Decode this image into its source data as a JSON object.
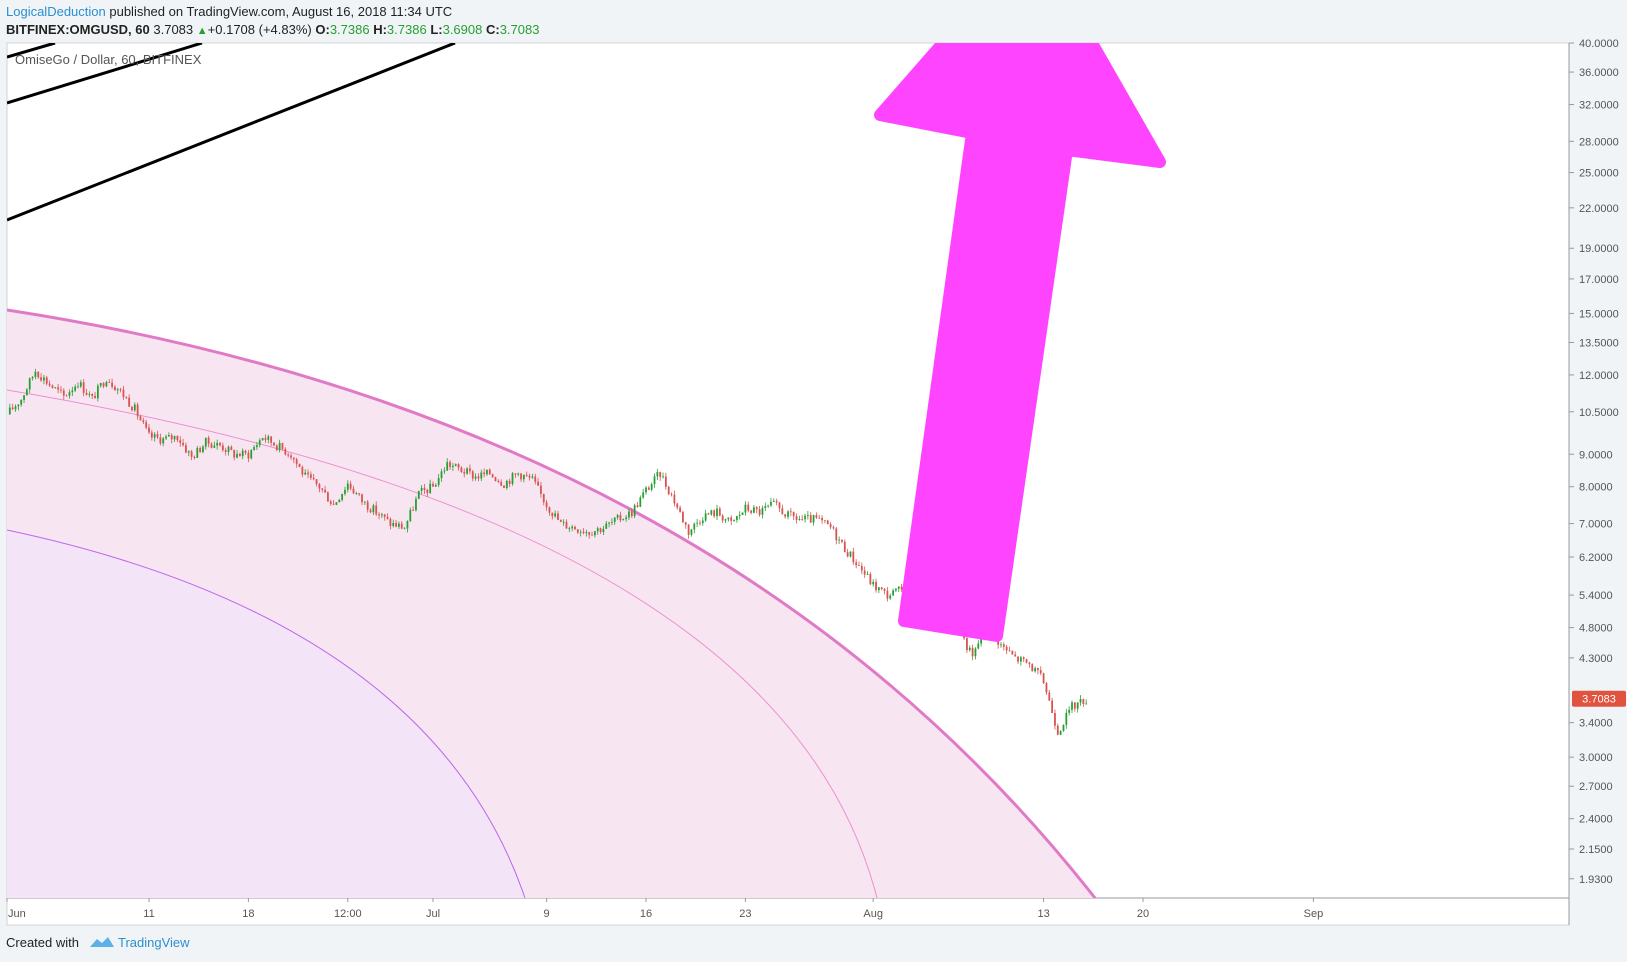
{
  "header": {
    "publisher": "LogicalDeduction",
    "published_text": "published on TradingView.com, August 16, 2018 11:34 UTC",
    "symbol": "BITFINEX:OMGUSD, 60",
    "last": "3.7083",
    "change": "+0.1708 (+4.83%)",
    "open_label": "O:",
    "open": "3.7386",
    "high_label": "H:",
    "high": "3.7386",
    "low_label": "L:",
    "low": "3.6908",
    "close_label": "C:",
    "close": "3.7083"
  },
  "footer": {
    "created_with": "Created with",
    "brand": "TradingView"
  },
  "colors": {
    "up": "#26a033",
    "candle_down": "#d9534f",
    "arrow": "#ff44ff",
    "outer_arc": "#e17ac6",
    "fill_outer": "#f8e5f2",
    "fill_inner": "#f3e5f7",
    "inner_arc": "#bb66ee",
    "price_badge": "#e0533f"
  },
  "chart_data": {
    "type": "candlestick",
    "title": "OmiseGo / Dollar, 60, BITFINEX",
    "symbol": "OMGUSD",
    "exchange": "BITFINEX",
    "interval": "60",
    "y_scale": "log",
    "ylim": [
      1.8,
      40
    ],
    "current_price": "3.7083",
    "y_ticks": [
      "40.0000",
      "36.0000",
      "32.0000",
      "28.0000",
      "25.0000",
      "22.0000",
      "19.0000",
      "17.0000",
      "15.0000",
      "13.5000",
      "12.0000",
      "10.5000",
      "9.0000",
      "8.0000",
      "7.0000",
      "6.2000",
      "5.4000",
      "4.8000",
      "4.3000",
      "3.4000",
      "3.0000",
      "2.7000",
      "2.4000",
      "2.1500",
      "1.9300"
    ],
    "x_ticks": [
      "Jun",
      "11",
      "18",
      "12:00",
      "Jul",
      "9",
      "16",
      "23",
      "Aug",
      "13",
      "20",
      "Sep"
    ],
    "x_tick_dates": [
      "2018-06-01",
      "2018-06-11",
      "2018-06-18",
      "2018-06-25",
      "2018-07-01",
      "2018-07-09",
      "2018-07-16",
      "2018-07-23",
      "2018-08-01",
      "2018-08-13",
      "2018-08-20",
      "2018-09-01"
    ],
    "xlim": [
      "2018-06-01",
      "2018-09-19"
    ],
    "price_path": [
      [
        "2018-06-01",
        10.4
      ],
      [
        "2018-06-02",
        11.0
      ],
      [
        "2018-06-03",
        12.2
      ],
      [
        "2018-06-04",
        11.6
      ],
      [
        "2018-06-05",
        11.1
      ],
      [
        "2018-06-06",
        11.7
      ],
      [
        "2018-06-07",
        11.0
      ],
      [
        "2018-06-08",
        11.9
      ],
      [
        "2018-06-09",
        11.3
      ],
      [
        "2018-06-10",
        10.6
      ],
      [
        "2018-06-11",
        9.6
      ],
      [
        "2018-06-12",
        9.5
      ],
      [
        "2018-06-13",
        9.6
      ],
      [
        "2018-06-14",
        8.9
      ],
      [
        "2018-06-15",
        9.4
      ],
      [
        "2018-06-16",
        9.3
      ],
      [
        "2018-06-17",
        9.0
      ],
      [
        "2018-06-18",
        9.0
      ],
      [
        "2018-06-19",
        9.6
      ],
      [
        "2018-06-20",
        9.3
      ],
      [
        "2018-06-21",
        9.0
      ],
      [
        "2018-06-22",
        8.3
      ],
      [
        "2018-06-23",
        8.0
      ],
      [
        "2018-06-24",
        7.5
      ],
      [
        "2018-06-25",
        8.1
      ],
      [
        "2018-06-26",
        7.6
      ],
      [
        "2018-06-27",
        7.3
      ],
      [
        "2018-06-28",
        7.0
      ],
      [
        "2018-06-29",
        6.9
      ],
      [
        "2018-06-30",
        7.8
      ],
      [
        "2018-07-01",
        8.0
      ],
      [
        "2018-07-02",
        8.7
      ],
      [
        "2018-07-03",
        8.5
      ],
      [
        "2018-07-04",
        8.3
      ],
      [
        "2018-07-05",
        8.4
      ],
      [
        "2018-07-06",
        8.1
      ],
      [
        "2018-07-07",
        8.4
      ],
      [
        "2018-07-08",
        8.2
      ],
      [
        "2018-07-09",
        7.5
      ],
      [
        "2018-07-10",
        7.0
      ],
      [
        "2018-07-11",
        6.9
      ],
      [
        "2018-07-12",
        6.8
      ],
      [
        "2018-07-13",
        6.9
      ],
      [
        "2018-07-14",
        7.1
      ],
      [
        "2018-07-15",
        7.3
      ],
      [
        "2018-07-16",
        7.9
      ],
      [
        "2018-07-17",
        8.4
      ],
      [
        "2018-07-18",
        7.6
      ],
      [
        "2018-07-19",
        6.8
      ],
      [
        "2018-07-20",
        7.2
      ],
      [
        "2018-07-21",
        7.3
      ],
      [
        "2018-07-22",
        7.0
      ],
      [
        "2018-07-23",
        7.4
      ],
      [
        "2018-07-24",
        7.3
      ],
      [
        "2018-07-25",
        7.5
      ],
      [
        "2018-07-26",
        7.2
      ],
      [
        "2018-07-27",
        7.1
      ],
      [
        "2018-07-28",
        7.1
      ],
      [
        "2018-07-29",
        6.9
      ],
      [
        "2018-07-30",
        6.4
      ],
      [
        "2018-07-31",
        6.0
      ],
      [
        "2018-08-01",
        5.6
      ],
      [
        "2018-08-02",
        5.4
      ],
      [
        "2018-08-03",
        5.5
      ],
      [
        "2018-08-04",
        5.6
      ],
      [
        "2018-08-05",
        5.3
      ],
      [
        "2018-08-06",
        5.4
      ],
      [
        "2018-08-07",
        4.8
      ],
      [
        "2018-08-08",
        4.3
      ],
      [
        "2018-08-09",
        4.9
      ],
      [
        "2018-08-10",
        4.5
      ],
      [
        "2018-08-11",
        4.3
      ],
      [
        "2018-08-12",
        4.2
      ],
      [
        "2018-08-13",
        3.95
      ],
      [
        "2018-08-14",
        3.3
      ],
      [
        "2018-08-15",
        3.6
      ],
      [
        "2018-08-16",
        3.7083
      ]
    ]
  }
}
